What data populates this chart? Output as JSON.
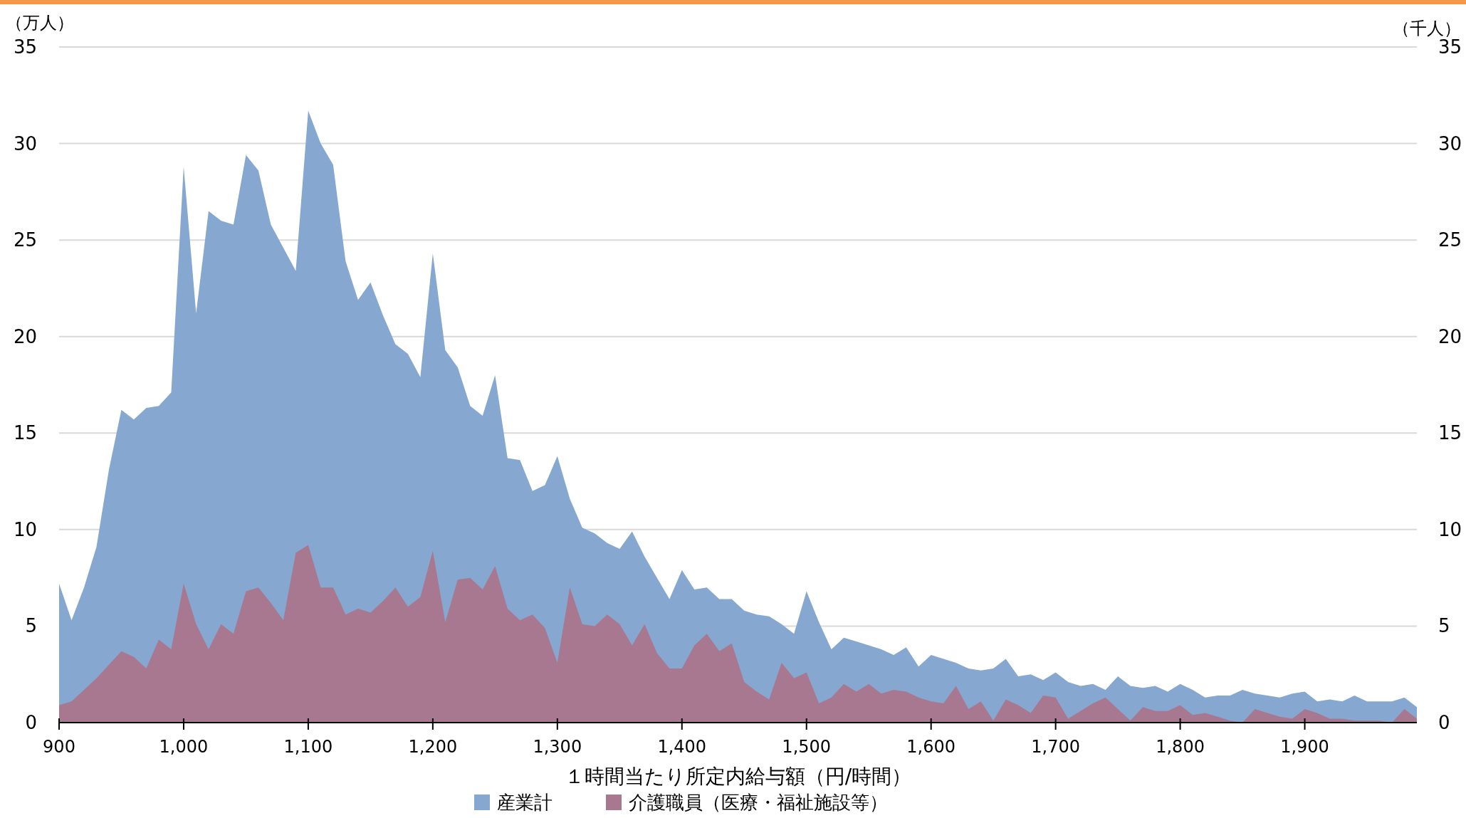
{
  "chart_data": {
    "type": "area",
    "xlabel": "１時間当たり所定内給与額（円/時間）",
    "ylabel": "（万人）",
    "y2label": "（千人）",
    "x": [
      900,
      910,
      920,
      930,
      940,
      950,
      960,
      970,
      980,
      990,
      1000,
      1010,
      1020,
      1030,
      1040,
      1050,
      1060,
      1070,
      1080,
      1090,
      1100,
      1110,
      1120,
      1130,
      1140,
      1150,
      1160,
      1170,
      1180,
      1190,
      1200,
      1210,
      1220,
      1230,
      1240,
      1250,
      1260,
      1270,
      1280,
      1290,
      1300,
      1310,
      1320,
      1330,
      1340,
      1350,
      1360,
      1370,
      1380,
      1390,
      1400,
      1410,
      1420,
      1430,
      1440,
      1450,
      1460,
      1470,
      1480,
      1490,
      1500,
      1510,
      1520,
      1530,
      1540,
      1550,
      1560,
      1570,
      1580,
      1590,
      1600,
      1610,
      1620,
      1630,
      1640,
      1650,
      1660,
      1670,
      1680,
      1690,
      1700,
      1710,
      1720,
      1730,
      1740,
      1750,
      1760,
      1770,
      1780,
      1790,
      1800,
      1810,
      1820,
      1830,
      1840,
      1850,
      1860,
      1870,
      1880,
      1890,
      1900,
      1910,
      1920,
      1930,
      1940,
      1950,
      1960,
      1970,
      1980,
      1990
    ],
    "series": [
      {
        "name": "産業計",
        "color": "#85a7d0",
        "values": [
          7.2,
          5.3,
          7.0,
          9.1,
          13.1,
          16.2,
          15.7,
          16.3,
          16.4,
          17.1,
          28.8,
          21.2,
          26.5,
          26.0,
          25.8,
          29.4,
          28.6,
          25.8,
          24.6,
          23.4,
          31.7,
          30.0,
          28.9,
          23.9,
          21.9,
          22.8,
          21.1,
          19.6,
          19.1,
          17.9,
          24.3,
          19.3,
          18.4,
          16.4,
          15.9,
          18.0,
          13.7,
          13.6,
          12.0,
          12.3,
          13.8,
          11.6,
          10.1,
          9.8,
          9.3,
          9.0,
          9.9,
          8.6,
          7.5,
          6.4,
          7.9,
          6.9,
          7.0,
          6.4,
          6.4,
          5.8,
          5.6,
          5.5,
          5.1,
          4.6,
          6.8,
          5.2,
          3.8,
          4.4,
          4.2,
          4.0,
          3.8,
          3.5,
          3.9,
          2.9,
          3.5,
          3.3,
          3.1,
          2.8,
          2.7,
          2.8,
          3.3,
          2.4,
          2.5,
          2.2,
          2.6,
          2.1,
          1.9,
          2.0,
          1.7,
          2.4,
          1.9,
          1.8,
          1.9,
          1.6,
          2.0,
          1.7,
          1.3,
          1.4,
          1.4,
          1.7,
          1.5,
          1.4,
          1.3,
          1.5,
          1.6,
          1.1,
          1.2,
          1.1,
          1.4,
          1.1,
          1.1,
          1.1,
          1.3,
          0.8
        ]
      },
      {
        "name": "介護職員（医療・福祉施設等）",
        "color": "#a7788f",
        "axis": "y2",
        "values": [
          0.9,
          1.1,
          1.7,
          2.3,
          3.0,
          3.7,
          3.4,
          2.8,
          4.3,
          3.8,
          7.2,
          5.1,
          3.8,
          5.1,
          4.6,
          6.8,
          7.0,
          6.2,
          5.3,
          8.8,
          9.2,
          7.0,
          7.0,
          5.6,
          5.9,
          5.7,
          6.3,
          7.0,
          6.0,
          6.5,
          8.9,
          5.2,
          7.4,
          7.5,
          6.9,
          8.1,
          5.9,
          5.3,
          5.6,
          4.9,
          3.1,
          7.0,
          5.1,
          5.0,
          5.6,
          5.1,
          4.0,
          5.1,
          3.6,
          2.8,
          2.8,
          4.0,
          4.6,
          3.7,
          4.1,
          2.1,
          1.6,
          1.2,
          3.1,
          2.3,
          2.6,
          1.0,
          1.3,
          2.0,
          1.6,
          2.0,
          1.5,
          1.7,
          1.6,
          1.3,
          1.1,
          1.0,
          1.9,
          0.7,
          1.1,
          0.1,
          1.2,
          0.9,
          0.5,
          1.4,
          1.3,
          0.2,
          0.6,
          1.0,
          1.3,
          0.7,
          0.1,
          0.8,
          0.6,
          0.6,
          0.9,
          0.4,
          0.5,
          0.3,
          0.1,
          0.0,
          0.7,
          0.5,
          0.3,
          0.2,
          0.7,
          0.5,
          0.2,
          0.2,
          0.1,
          0.1,
          0.1,
          0.0,
          0.7,
          0.2
        ]
      }
    ],
    "xlim": [
      900,
      1990
    ],
    "xticks": [
      900,
      {
        "value": 1000,
        "label": "1,000"
      },
      {
        "value": 1100,
        "label": "1,100"
      },
      {
        "value": 1200,
        "label": "1,200"
      },
      {
        "value": 1300,
        "label": "1,300"
      },
      {
        "value": 1400,
        "label": "1,400"
      },
      {
        "value": 1500,
        "label": "1,500"
      },
      {
        "value": 1600,
        "label": "1,600"
      },
      {
        "value": 1700,
        "label": "1,700"
      },
      {
        "value": 1800,
        "label": "1,800"
      },
      {
        "value": 1900,
        "label": "1,900"
      }
    ],
    "ylim": [
      0,
      35
    ],
    "yticks": [
      0,
      5,
      10,
      15,
      20,
      25,
      30,
      35
    ],
    "y2lim": [
      0,
      35
    ],
    "y2ticks": [
      0,
      5,
      10,
      15,
      20,
      25,
      30,
      35
    ],
    "grid": "y",
    "legend": "bottom"
  }
}
